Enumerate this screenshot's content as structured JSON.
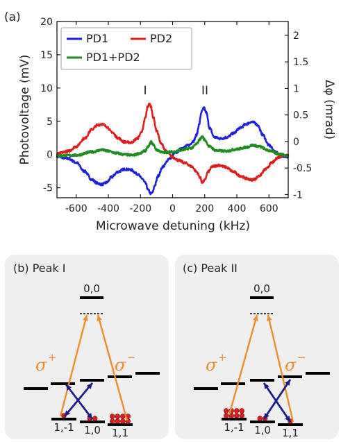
{
  "chart_data": {
    "type": "line",
    "panel_label": "(a)",
    "xlabel": "Microwave detuning (kHz)",
    "ylabel": "Photovoltage (mV)",
    "ylabel_right": "Δφ (mrad)",
    "xlim": [
      -720,
      720
    ],
    "ylim": [
      -6.5,
      20
    ],
    "ylim_right": [
      -1.06,
      2.26
    ],
    "x_ticks": [
      "-600",
      "-400",
      "-200",
      "0",
      "200",
      "400",
      "600"
    ],
    "x_tick_values": [
      -600,
      -400,
      -200,
      0,
      200,
      400,
      600
    ],
    "y_ticks": [
      "-5",
      "0",
      "5",
      "10",
      "15",
      "20"
    ],
    "y_tick_values": [
      -5,
      0,
      5,
      10,
      15,
      20
    ],
    "y_right_ticks": [
      "-1",
      "-0.5",
      "0",
      "0.5",
      "1",
      "1.5",
      "2"
    ],
    "y_right_tick_values": [
      -1,
      -0.5,
      0,
      0.5,
      1,
      1.5,
      2
    ],
    "legend": {
      "placement": "top-left",
      "entries": [
        "PD1",
        "PD2",
        "PD1+PD2"
      ]
    },
    "annotations": [
      {
        "text": "I",
        "x": -150,
        "y": 10.5
      },
      {
        "text": "II",
        "x": 190,
        "y": 10.5
      }
    ],
    "series": [
      {
        "name": "PD1",
        "color": "#1f1fe0",
        "x": [
          -720,
          -650,
          -600,
          -550,
          -500,
          -470,
          -440,
          -410,
          -380,
          -340,
          -300,
          -260,
          -220,
          -190,
          -170,
          -150,
          -135,
          -125,
          -110,
          -90,
          -60,
          -20,
          20,
          60,
          100,
          130,
          150,
          165,
          180,
          195,
          210,
          230,
          260,
          300,
          340,
          380,
          420,
          460,
          490,
          510,
          530,
          560,
          600,
          640,
          680,
          720
        ],
        "values": [
          -0.3,
          -0.6,
          -1.2,
          -2.5,
          -3.8,
          -4.3,
          -4.5,
          -4.2,
          -3.4,
          -2.6,
          -2.2,
          -2.3,
          -2.9,
          -3.6,
          -4.3,
          -5.4,
          -5.9,
          -5.7,
          -4.6,
          -3.2,
          -1.8,
          -0.6,
          0.3,
          1.0,
          1.4,
          2.0,
          3.0,
          4.5,
          6.4,
          7.0,
          6.3,
          4.0,
          2.6,
          2.4,
          2.6,
          3.2,
          4.0,
          4.6,
          4.9,
          4.8,
          4.4,
          3.0,
          1.4,
          0.4,
          -0.2,
          -0.4
        ]
      },
      {
        "name": "PD2",
        "color": "#e01d1d",
        "x": [
          -720,
          -650,
          -600,
          -550,
          -500,
          -470,
          -440,
          -410,
          -380,
          -340,
          -300,
          -260,
          -220,
          -190,
          -170,
          -155,
          -145,
          -135,
          -120,
          -100,
          -70,
          -40,
          0,
          40,
          80,
          120,
          150,
          170,
          185,
          200,
          220,
          250,
          290,
          330,
          380,
          420,
          460,
          490,
          510,
          540,
          580,
          620,
          660,
          700,
          720
        ],
        "values": [
          0.1,
          0.5,
          1.2,
          2.4,
          3.8,
          4.4,
          4.6,
          4.2,
          3.4,
          2.5,
          1.9,
          1.8,
          2.4,
          3.5,
          5.5,
          7.2,
          7.6,
          7.2,
          5.6,
          3.6,
          1.6,
          0.5,
          -0.4,
          -0.9,
          -1.3,
          -1.8,
          -2.6,
          -3.4,
          -4.2,
          -3.9,
          -2.6,
          -1.8,
          -1.6,
          -1.9,
          -2.6,
          -3.2,
          -3.6,
          -3.8,
          -3.7,
          -3.2,
          -2.2,
          -1.2,
          -0.4,
          -0.1,
          0.0
        ]
      },
      {
        "name": "PD1+PD2",
        "color": "#1e8c1e",
        "x": [
          -720,
          -600,
          -500,
          -440,
          -400,
          -350,
          -300,
          -250,
          -200,
          -170,
          -150,
          -135,
          -120,
          -100,
          -60,
          0,
          60,
          120,
          150,
          170,
          185,
          200,
          230,
          270,
          330,
          400,
          460,
          500,
          540,
          600,
          660,
          720
        ],
        "values": [
          -0.2,
          -0.1,
          0.4,
          0.7,
          0.5,
          0.2,
          0.0,
          -0.1,
          0.2,
          0.6,
          1.2,
          1.9,
          1.5,
          0.7,
          0.3,
          0.4,
          0.7,
          1.0,
          1.6,
          2.3,
          2.7,
          2.2,
          1.2,
          0.6,
          0.5,
          0.8,
          1.1,
          1.4,
          1.2,
          0.6,
          0.1,
          -0.2
        ]
      }
    ]
  },
  "diagram_b": {
    "title": "(b) Peak I",
    "top_level": "0,0",
    "sigma_plus": "σ",
    "sigma_plus_sup": "+",
    "sigma_minus": "σ",
    "sigma_minus_sup": "−",
    "bottom_labels": [
      "1,-1",
      "1,0",
      "1,1"
    ],
    "populations": [
      1,
      2,
      8
    ]
  },
  "diagram_c": {
    "title": "(c) Peak II",
    "top_level": "0,0",
    "sigma_plus": "σ",
    "sigma_plus_sup": "+",
    "sigma_minus": "σ",
    "sigma_minus_sup": "−",
    "bottom_labels": [
      "1,-1",
      "1,0",
      "1,1"
    ],
    "populations": [
      8,
      2,
      1
    ]
  },
  "colors": {
    "optical": "#f28c28",
    "microwave": "#1c1c8c",
    "atom": "#e01d1d",
    "panel_bg": "#efefef"
  }
}
